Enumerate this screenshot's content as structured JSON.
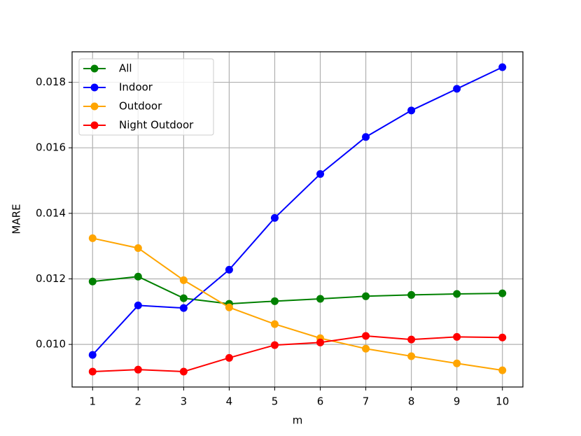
{
  "chart_data": {
    "type": "line",
    "xlabel": "m",
    "ylabel": "MARE",
    "x": [
      1,
      2,
      3,
      4,
      5,
      6,
      7,
      8,
      9,
      10
    ],
    "series": [
      {
        "name": "All",
        "color": "green",
        "values": [
          0.01192,
          0.01207,
          0.01141,
          0.01124,
          0.01132,
          0.01139,
          0.01147,
          0.01151,
          0.01154,
          0.01156
        ]
      },
      {
        "name": "Indoor",
        "color": "blue",
        "values": [
          0.00968,
          0.01119,
          0.01111,
          0.01228,
          0.01386,
          0.0152,
          0.01633,
          0.01714,
          0.0178,
          0.01846
        ]
      },
      {
        "name": "Outdoor",
        "color": "orange",
        "values": [
          0.01324,
          0.01294,
          0.01196,
          0.01113,
          0.01062,
          0.01019,
          0.00987,
          0.00964,
          0.00942,
          0.00921
        ]
      },
      {
        "name": "Night Outdoor",
        "color": "red",
        "values": [
          0.00917,
          0.00923,
          0.00917,
          0.00959,
          0.00998,
          0.01006,
          0.01026,
          0.01015,
          0.01023,
          0.01021
        ]
      }
    ],
    "xlim": [
      0.55,
      10.45
    ],
    "xticks": [
      1,
      2,
      3,
      4,
      5,
      6,
      7,
      8,
      9,
      10
    ],
    "ylim": [
      0.0087,
      0.01893
    ],
    "yticks": [
      {
        "value": 0.01,
        "label": "0.010"
      },
      0.012,
      0.014,
      0.016,
      0.018
    ],
    "grid": true,
    "legend": "upper left"
  }
}
